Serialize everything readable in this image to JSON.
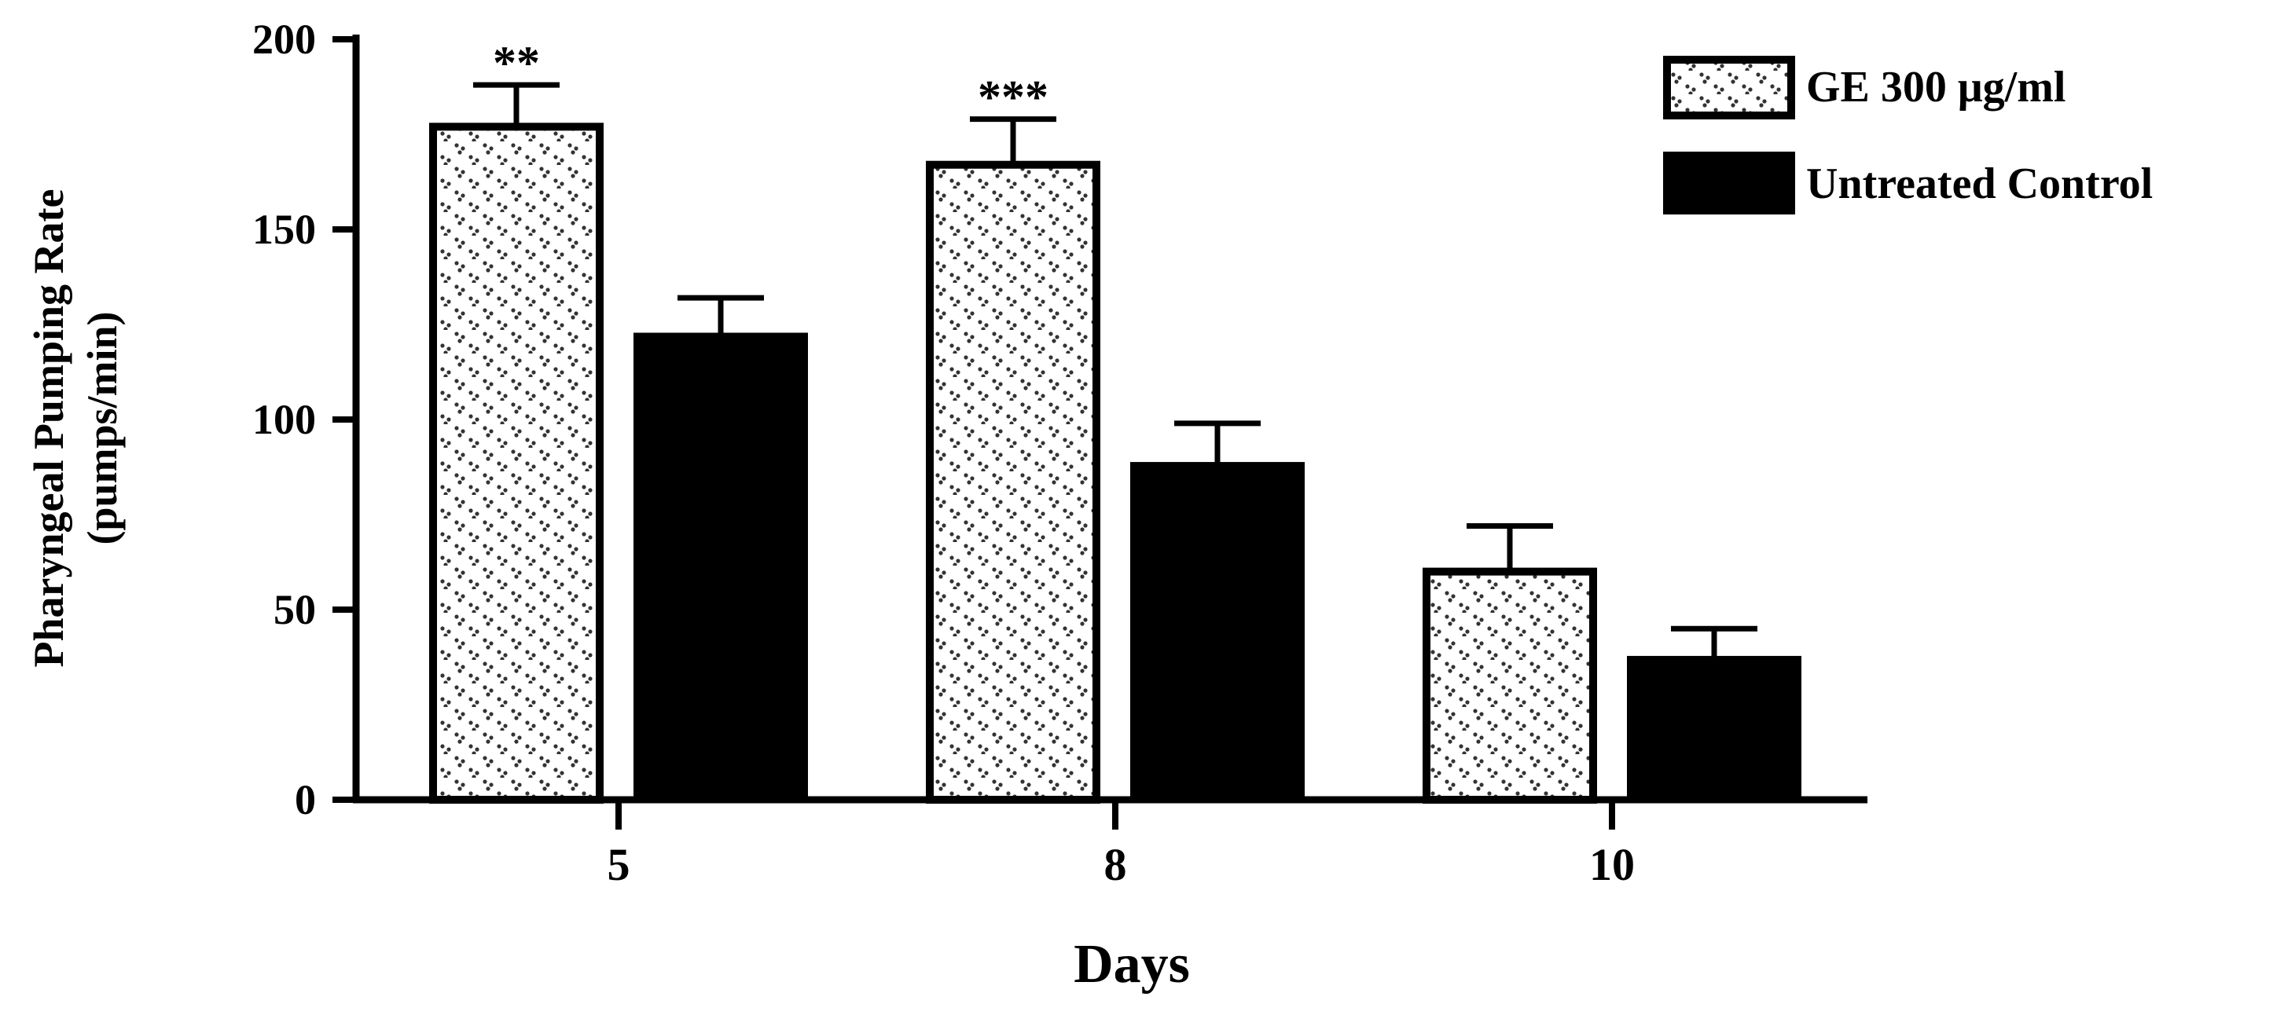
{
  "chart_data": {
    "type": "bar",
    "categories": [
      "5",
      "8",
      "10"
    ],
    "series": [
      {
        "name": "GE 300 μg/ml",
        "values": [
          177,
          167,
          60
        ],
        "errors": [
          11,
          12,
          12
        ],
        "pattern": "dotted"
      },
      {
        "name": "Untreated Control",
        "values": [
          122,
          88,
          37
        ],
        "errors": [
          10,
          11,
          8
        ],
        "pattern": "solid"
      }
    ],
    "significance": [
      "**",
      "***",
      ""
    ],
    "xlabel": "Days",
    "ylabel": [
      "Pharyngeal Pumping Rate",
      "(pumps/min)"
    ],
    "ylim": [
      0,
      200
    ],
    "yticks": [
      "0",
      "50",
      "100",
      "150",
      "200"
    ],
    "legend_position": "top-right",
    "colors": {
      "bar_fill_dotted": "#ffffff",
      "bar_fill_solid": "#000000",
      "stroke": "#000000"
    }
  }
}
